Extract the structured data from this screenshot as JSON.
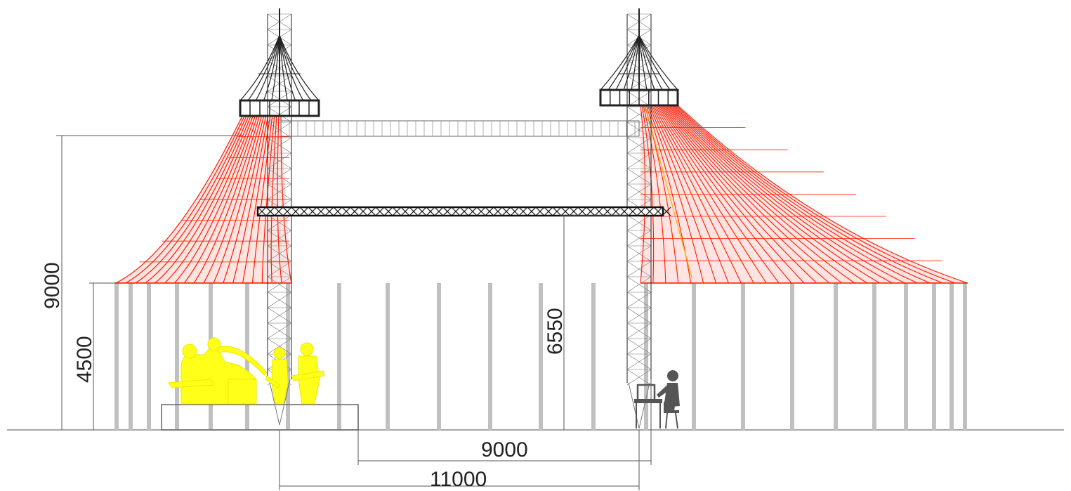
{
  "dimensions": {
    "total_height": "9000",
    "wall_height": "4500",
    "truss_height": "6550",
    "stage_to_mast": "9000",
    "mast_to_mast": "11000"
  },
  "colors": {
    "canvas_lines": "#ff1a00",
    "canvas_fill": "#ff4a3a",
    "mast": "#222222",
    "dim_line": "#555555",
    "wall_post": "#c0c0c0",
    "ground": "#888888",
    "band": "#ffff1a",
    "operator": "#555555"
  }
}
